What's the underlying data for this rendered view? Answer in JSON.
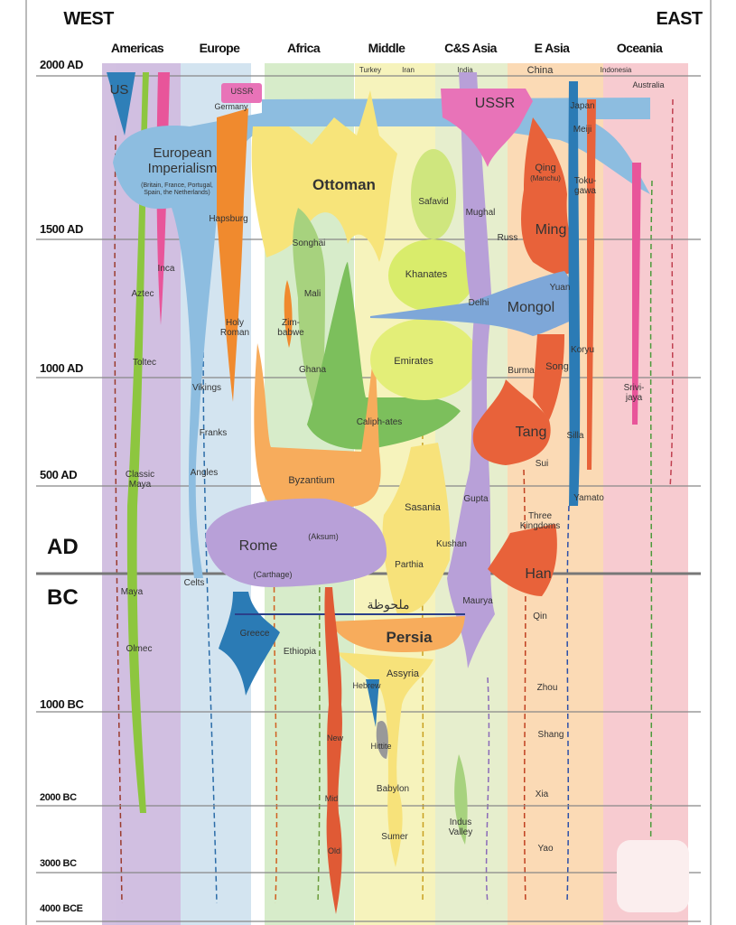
{
  "header": {
    "west": "WEST",
    "east": "EAST"
  },
  "columns": [
    "Americas",
    "Europe",
    "Africa",
    "Middle",
    "C&S Asia",
    "E Asia",
    "Oceania"
  ],
  "timeline": [
    "2000 AD",
    "1500 AD",
    "1000 AD",
    "500 AD",
    "AD",
    "BC",
    "1000 BC",
    "2000 BC",
    "3000 BC",
    "4000 BCE"
  ],
  "labels": [
    "US",
    "USSR",
    "Germany",
    "European Imperialism",
    "(Britain, France, Portugal, Spain, the Netherlands)",
    "Hapsburg",
    "Ottoman",
    "Turkey",
    "Iran",
    "India",
    "China",
    "Indonesia",
    "Australia",
    "USSR",
    "Japan",
    "Meiji",
    "Qing",
    "(Manchu)",
    "Toku-gawa",
    "Safavid",
    "Mughal",
    "Russ",
    "Ming",
    "Songhai",
    "Mali",
    "Inca",
    "Aztec",
    "Khanates",
    "Yuan",
    "Delhi",
    "Mongol",
    "Holy Roman",
    "Zim-babwe",
    "Koryu",
    "Toltec",
    "Ghana",
    "Emirates",
    "Burma",
    "Song",
    "Srivi-jaya",
    "Vikings",
    "Caliph-ates",
    "Tang",
    "Franks",
    "Silla",
    "Sui",
    "Classic Maya",
    "Angles",
    "Byzantium",
    "Gupta",
    "Yamato",
    "Sasania",
    "Three Kingdoms",
    "(Aksum)",
    "Rome",
    "Kushan",
    "Parthia",
    "Celts",
    "(Carthage)",
    "Han",
    "Maya",
    "ملحوظة",
    "Maurya",
    "Qin",
    "Greece",
    "Persia",
    "Olmec",
    "Ethiopia",
    "Assyria",
    "Hebrew",
    "Zhou",
    "New",
    "Hittite",
    "Shang",
    "Babylon",
    "Mid",
    "Xia",
    "Indus Valley",
    "Sumer",
    "Yao",
    "Old"
  ]
}
